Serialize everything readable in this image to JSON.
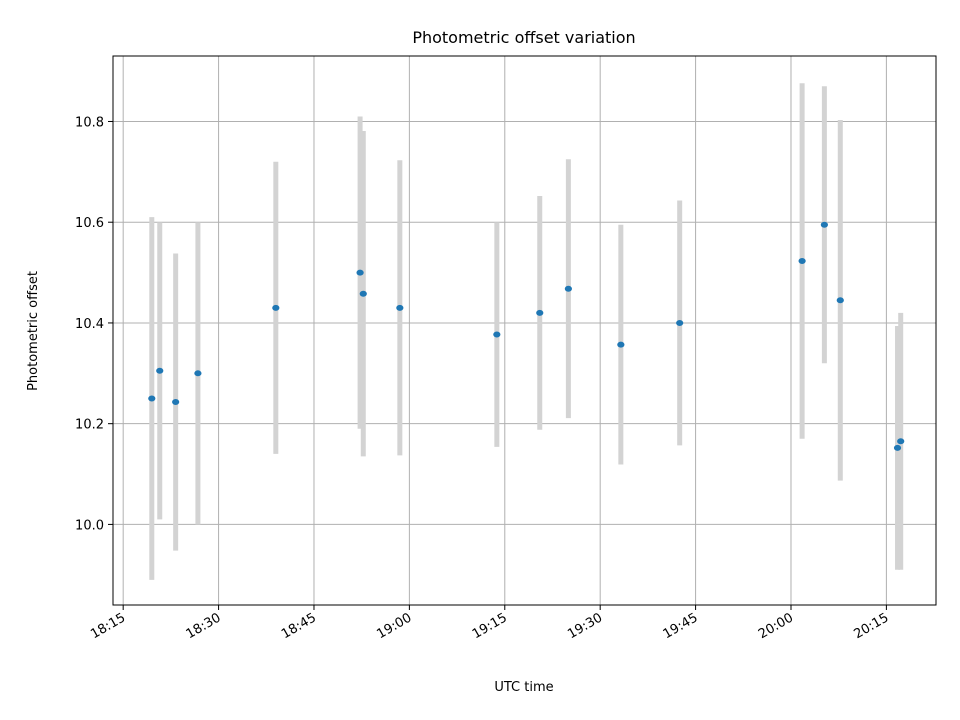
{
  "chart_data": {
    "type": "scatter",
    "title": "Photometric offset variation",
    "xlabel": "UTC time",
    "ylabel": "Photometric offset",
    "grid": true,
    "xlim": [
      "18:13:24",
      "20:22:48"
    ],
    "ylim": [
      9.84,
      10.93
    ],
    "x_ticks": [
      "18:15",
      "18:30",
      "18:45",
      "19:00",
      "19:15",
      "19:30",
      "19:45",
      "20:00",
      "20:15"
    ],
    "y_ticks": [
      10.0,
      10.2,
      10.4,
      10.6,
      10.8
    ],
    "y_tick_labels": [
      "10.0",
      "10.2",
      "10.4",
      "10.6",
      "10.8"
    ],
    "point_color": "#1f77b4",
    "errorbar_color": "#d3d3d3",
    "points": [
      {
        "x": "18:19:30",
        "y": 10.25,
        "err": 0.36
      },
      {
        "x": "18:20:45",
        "y": 10.305,
        "err": 0.295
      },
      {
        "x": "18:23:15",
        "y": 10.243,
        "err": 0.295
      },
      {
        "x": "18:26:45",
        "y": 10.3,
        "err": 0.3
      },
      {
        "x": "18:39:00",
        "y": 10.43,
        "err": 0.29
      },
      {
        "x": "18:52:15",
        "y": 10.5,
        "err": 0.31
      },
      {
        "x": "18:52:45",
        "y": 10.458,
        "err": 0.323
      },
      {
        "x": "18:58:30",
        "y": 10.43,
        "err": 0.293
      },
      {
        "x": "19:13:45",
        "y": 10.377,
        "err": 0.223
      },
      {
        "x": "19:20:30",
        "y": 10.42,
        "err": 0.232
      },
      {
        "x": "19:25:00",
        "y": 10.468,
        "err": 0.257
      },
      {
        "x": "19:33:15",
        "y": 10.357,
        "err": 0.238
      },
      {
        "x": "19:42:30",
        "y": 10.4,
        "err": 0.243
      },
      {
        "x": "20:01:45",
        "y": 10.523,
        "err": 0.353
      },
      {
        "x": "20:05:15",
        "y": 10.595,
        "err": 0.275
      },
      {
        "x": "20:07:45",
        "y": 10.445,
        "err": 0.358
      },
      {
        "x": "20:16:45",
        "y": 10.152,
        "err": 0.242
      },
      {
        "x": "20:17:15",
        "y": 10.165,
        "err": 0.255
      }
    ]
  }
}
